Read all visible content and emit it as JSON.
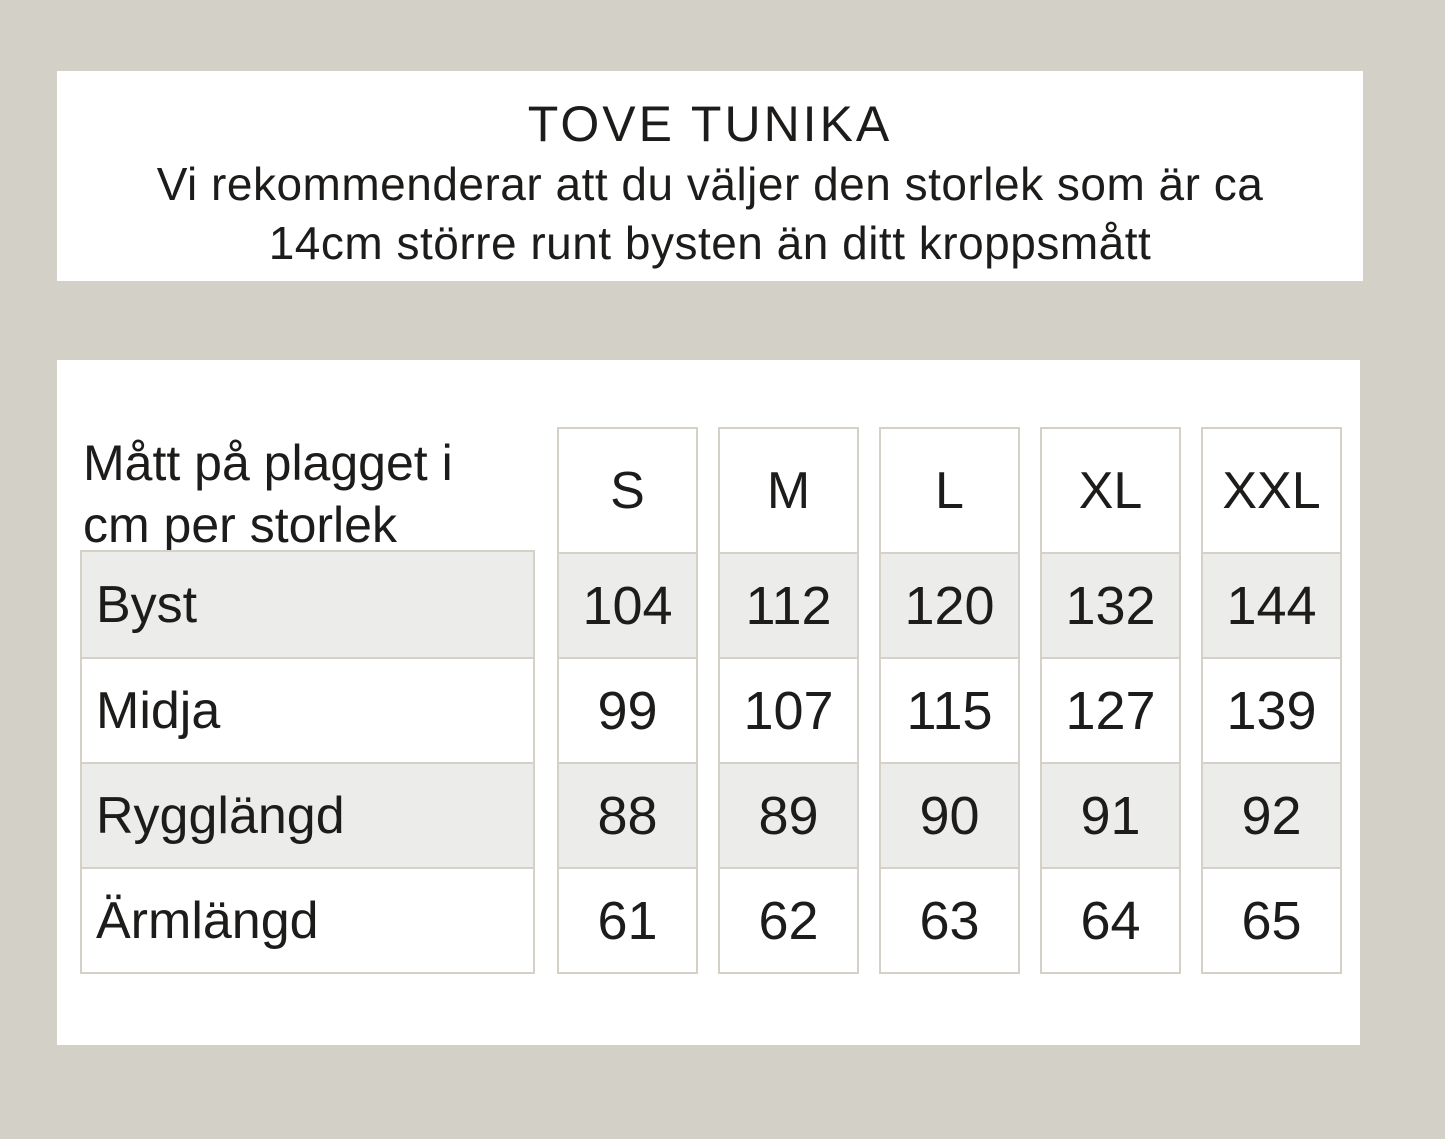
{
  "page": {
    "background_color": "#d3d0c8",
    "card_color": "#ffffff",
    "line_color": "#d5d1c9",
    "shade_color": "#ececea",
    "text_color": "#1d1c1a"
  },
  "header_card": {
    "title": "TOVE TUNIKA",
    "subtitle_line1": "Vi rekommenderar att du väljer den storlek som är ca",
    "subtitle_line2": "14cm större runt bysten än ditt kroppsmått"
  },
  "chart_data": {
    "type": "table",
    "title": "TOVE TUNIKA",
    "corner_label_line1": "Mått på plagget i",
    "corner_label_line2": "cm per storlek",
    "columns": [
      "S",
      "M",
      "L",
      "XL",
      "XXL"
    ],
    "rows": [
      {
        "label": "Byst",
        "values": [
          104,
          112,
          120,
          132,
          144
        ]
      },
      {
        "label": "Midja",
        "values": [
          99,
          107,
          115,
          127,
          139
        ]
      },
      {
        "label": "Rygglängd",
        "values": [
          88,
          89,
          90,
          91,
          92
        ]
      },
      {
        "label": "Ärmlängd",
        "values": [
          61,
          62,
          63,
          64,
          65
        ]
      }
    ],
    "units": "cm"
  }
}
